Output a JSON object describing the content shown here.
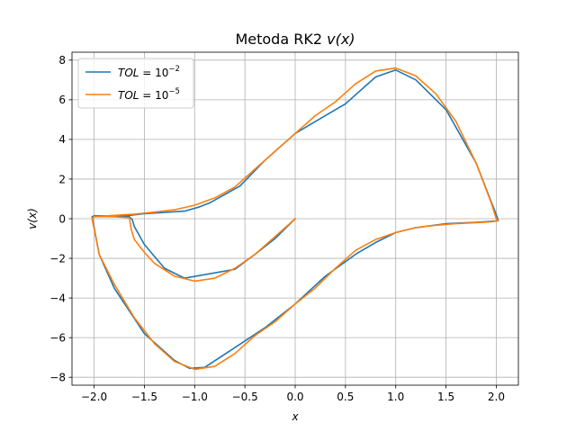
{
  "chart_data": {
    "type": "line",
    "title": "Metoda RK2 ",
    "title_math": "v(x)",
    "xlabel": "x",
    "ylabel": "v(x)",
    "xlim": [
      -2.22,
      2.22
    ],
    "ylim": [
      -8.4,
      8.4
    ],
    "xticks": [
      -2.0,
      -1.5,
      -1.0,
      -0.5,
      0.0,
      0.5,
      1.0,
      1.5,
      2.0
    ],
    "xtick_labels": [
      "−2.0",
      "−1.5",
      "−1.0",
      "−0.5",
      "0.0",
      "0.5",
      "1.0",
      "1.5",
      "2.0"
    ],
    "yticks": [
      -8,
      -6,
      -4,
      -2,
      0,
      2,
      4,
      6,
      8
    ],
    "ytick_labels": [
      "−8",
      "−6",
      "−4",
      "−2",
      "0",
      "2",
      "4",
      "6",
      "8"
    ],
    "grid": true,
    "legend_placement": "upper-left",
    "series": [
      {
        "name": "TOL = 10^-2",
        "legend_base": "TOL",
        "legend_mid": " = 10",
        "legend_exp": "−2",
        "color": "#1f77b4",
        "x": [
          0.0,
          -0.2,
          -0.4,
          -0.6,
          -1.1,
          -1.3,
          -1.5,
          -1.6,
          -1.62,
          -1.65,
          -1.8,
          -2.0,
          -2.02,
          -1.95,
          -1.8,
          -1.5,
          -1.2,
          -1.05,
          -0.9,
          -0.6,
          -0.3,
          0.0,
          0.3,
          0.6,
          0.8,
          1.0,
          1.2,
          1.5,
          1.8,
          1.95,
          2.02,
          2.0,
          1.8,
          1.5,
          1.2,
          1.0,
          0.8,
          0.5,
          0.2,
          0.0,
          -0.3,
          -0.55,
          -0.85,
          -0.95,
          -1.1,
          -1.5,
          -1.65,
          -1.9,
          -2.0
        ],
        "y": [
          0.0,
          -1.0,
          -1.8,
          -2.55,
          -3.0,
          -2.5,
          -1.3,
          -0.4,
          -0.05,
          0.1,
          0.13,
          0.15,
          0.1,
          -1.8,
          -3.5,
          -5.8,
          -7.15,
          -7.55,
          -7.5,
          -6.5,
          -5.5,
          -4.3,
          -2.9,
          -1.8,
          -1.2,
          -0.7,
          -0.45,
          -0.25,
          -0.18,
          -0.13,
          -0.1,
          0.2,
          2.8,
          5.5,
          7.0,
          7.5,
          7.15,
          5.8,
          4.9,
          4.3,
          2.95,
          1.65,
          0.8,
          0.6,
          0.38,
          0.25,
          0.17,
          0.12,
          0.1
        ]
      },
      {
        "name": "TOL = 10^-5",
        "legend_base": "TOL",
        "legend_mid": " = 10",
        "legend_exp": "−5",
        "color": "#ff7f0e",
        "x": [
          0.0,
          -0.2,
          -0.4,
          -0.6,
          -0.8,
          -1.0,
          -1.2,
          -1.4,
          -1.5,
          -1.6,
          -1.63,
          -1.65,
          -1.8,
          -2.0,
          -2.02,
          -1.95,
          -1.8,
          -1.6,
          -1.4,
          -1.2,
          -1.0,
          -0.8,
          -0.6,
          -0.4,
          -0.2,
          0.0,
          0.2,
          0.4,
          0.6,
          0.8,
          1.0,
          1.2,
          1.4,
          1.6,
          1.8,
          1.95,
          2.02,
          2.0,
          1.95,
          1.8,
          1.6,
          1.4,
          1.2,
          1.0,
          0.8,
          0.6,
          0.4,
          0.2,
          0.0,
          -0.2,
          -0.4,
          -0.6,
          -0.8,
          -1.0,
          -1.2,
          -1.4,
          -1.6,
          -1.8,
          -2.0
        ],
        "y": [
          0.0,
          -0.9,
          -1.8,
          -2.5,
          -3.0,
          -3.15,
          -2.9,
          -2.25,
          -1.7,
          -1.05,
          -0.55,
          0.05,
          0.1,
          0.12,
          0.0,
          -1.8,
          -3.3,
          -5.0,
          -6.3,
          -7.2,
          -7.6,
          -7.45,
          -6.8,
          -5.9,
          -5.2,
          -4.3,
          -3.5,
          -2.5,
          -1.6,
          -1.05,
          -0.7,
          -0.45,
          -0.33,
          -0.25,
          -0.2,
          -0.16,
          -0.1,
          0.0,
          0.8,
          2.8,
          4.9,
          6.3,
          7.2,
          7.6,
          7.45,
          6.8,
          5.9,
          5.2,
          4.3,
          3.4,
          2.5,
          1.6,
          1.05,
          0.68,
          0.45,
          0.33,
          0.23,
          0.17,
          0.1
        ]
      }
    ]
  }
}
